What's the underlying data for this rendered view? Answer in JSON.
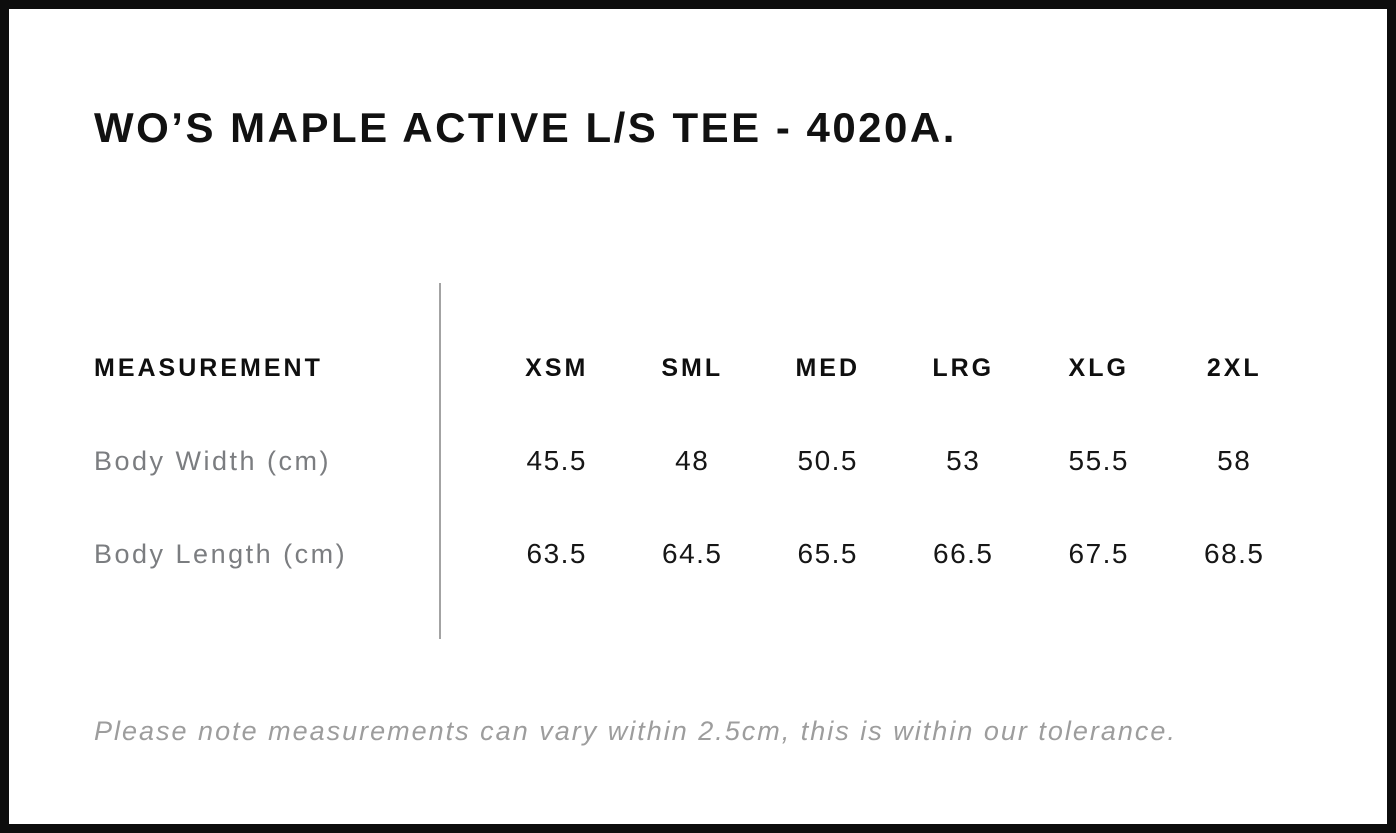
{
  "page": {
    "title": "WO’S MAPLE ACTIVE L/S TEE - 4020A.",
    "footnote": "Please note measurements can vary within 2.5cm, this is within our tolerance."
  },
  "size_chart": {
    "measurement_header": "MEASUREMENT",
    "size_headers": [
      "XSM",
      "SML",
      "MED",
      "LRG",
      "XLG",
      "2XL"
    ],
    "rows": [
      {
        "label": "Body Width (cm)",
        "values": [
          "45.5",
          "48",
          "50.5",
          "53",
          "55.5",
          "58"
        ]
      },
      {
        "label": "Body Length (cm)",
        "values": [
          "63.5",
          "64.5",
          "65.5",
          "66.5",
          "67.5",
          "68.5"
        ]
      }
    ]
  },
  "colors": {
    "background": "#ffffff",
    "border": "#0d0d0d",
    "title_text": "#111111",
    "header_text": "#0f0f0f",
    "label_text": "#7b7d80",
    "value_text": "#161616",
    "footnote_text": "#9d9d9d",
    "divider": "#a3a3a3"
  }
}
